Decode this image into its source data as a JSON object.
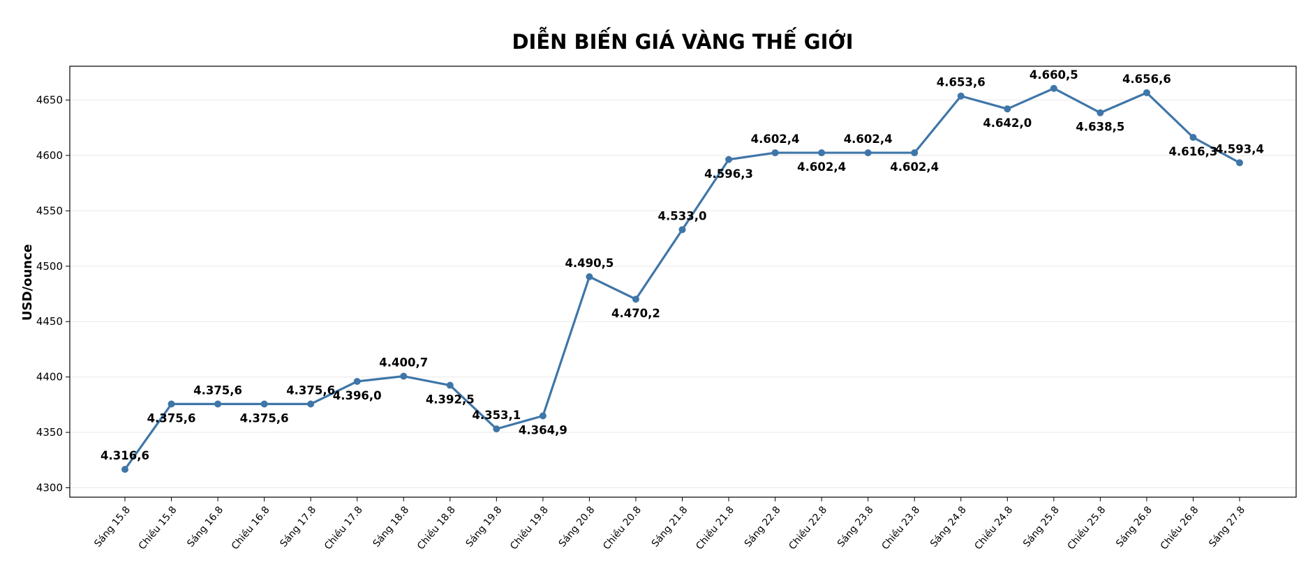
{
  "chart_data": {
    "type": "line",
    "title": "DIỄN BIẾN GIÁ VÀNG THẾ GIỚI",
    "xlabel": "",
    "ylabel": "USD/ounce",
    "ylim": [
      4291.5,
      4680.5
    ],
    "yticks": [
      4300,
      4350,
      4400,
      4450,
      4500,
      4550,
      4600,
      4650
    ],
    "grid": "horizontal",
    "legend": "none",
    "colors": {
      "line": "#3f76a8",
      "grid": "#e8e8e8",
      "axis": "#000000"
    },
    "categories": [
      "Sáng 15.8",
      "Chiều 15.8",
      "Sáng 16.8",
      "Chiều 16.8",
      "Sáng 17.8",
      "Chiều 17.8",
      "Sáng 18.8",
      "Chiều 18.8",
      "Sáng 19.8",
      "Chiều 19.8",
      "Sáng 20.8",
      "Chiều 20.8",
      "Sáng 21.8",
      "Chiều 21.8",
      "Sáng 22.8",
      "Chiều 22.8",
      "Sáng 23.8",
      "Chiều 23.8",
      "Sáng 24.8",
      "Chiều 24.8",
      "Sáng 25.8",
      "Chiều 25.8",
      "Sáng 26.8",
      "Chiều 26.8",
      "Sáng 27.8"
    ],
    "values": [
      4316.6,
      4375.6,
      4375.6,
      4375.6,
      4375.6,
      4396.0,
      4400.7,
      4392.5,
      4353.1,
      4364.9,
      4490.5,
      4470.2,
      4533.0,
      4596.3,
      4602.4,
      4602.4,
      4602.4,
      4602.4,
      4653.6,
      4642.0,
      4660.5,
      4638.5,
      4656.6,
      4616.3,
      4593.4
    ],
    "data_labels": [
      "4.316,6",
      "4.375,6",
      "4.375,6",
      "4.375,6",
      "4.375,6",
      "4.396,0",
      "4.400,7",
      "4.392,5",
      "4.353,1",
      "4.364,9",
      "4.490,5",
      "4.470,2",
      "4.533,0",
      "4.596,3",
      "4.602,4",
      "4.602,4",
      "4.602,4",
      "4.602,4",
      "4.653,6",
      "4.642,0",
      "4.660,5",
      "4.638,5",
      "4.656,6",
      "4.616,3",
      "4.593,4"
    ],
    "label_positions": [
      "above",
      "below",
      "above",
      "below",
      "above",
      "below",
      "above",
      "below",
      "above",
      "below",
      "above",
      "below",
      "above",
      "below",
      "above",
      "below",
      "above",
      "below",
      "above",
      "below",
      "above",
      "below",
      "above",
      "below",
      "above"
    ]
  }
}
